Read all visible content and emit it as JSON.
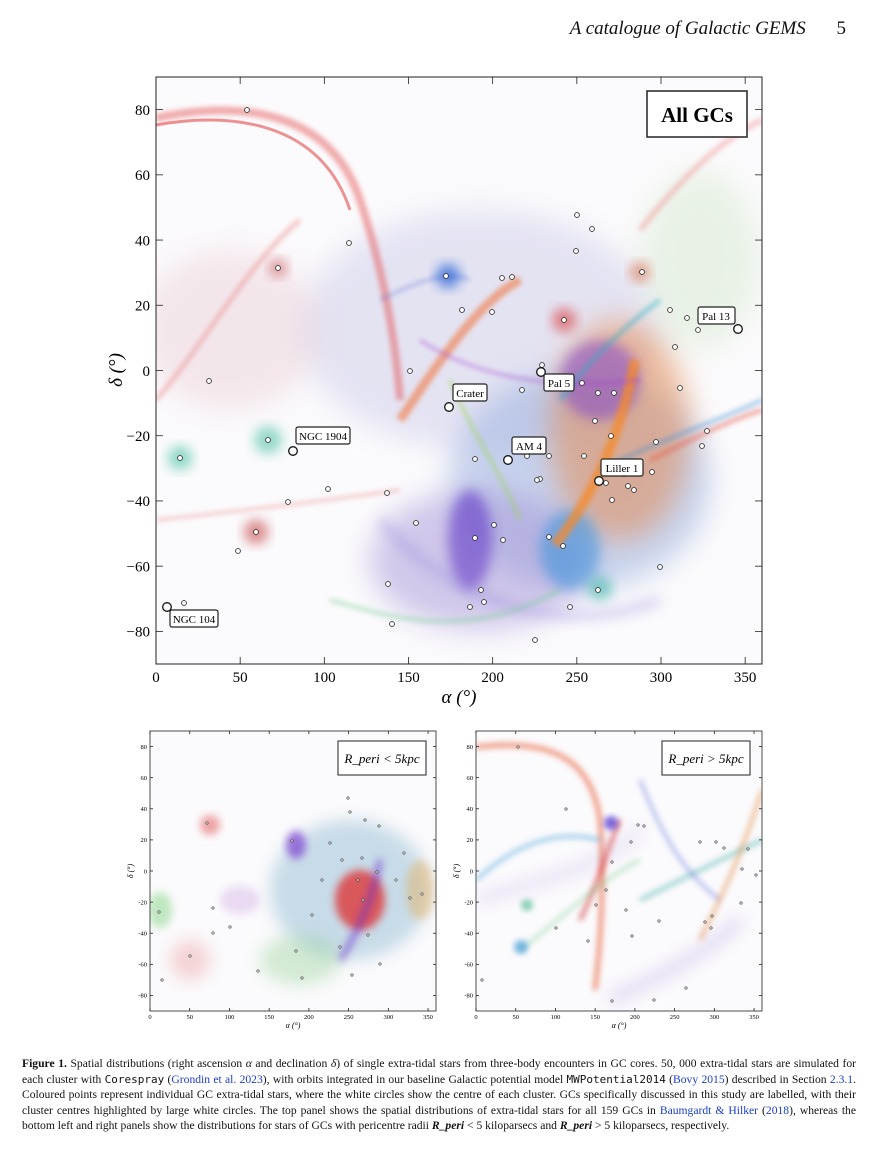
{
  "header": {
    "title": "A catalogue of Galactic GEMS",
    "page_number": "5"
  },
  "top_panel": {
    "label": "All GCs",
    "xlabel": "α (°)",
    "ylabel": "δ (°)",
    "x_ticks": [
      "0",
      "50",
      "100",
      "150",
      "200",
      "250",
      "300",
      "350"
    ],
    "y_ticks": [
      "80",
      "60",
      "40",
      "20",
      "0",
      "−20",
      "−40",
      "−60",
      "−80"
    ],
    "cluster_labels": [
      "Pal 13",
      "Pal 5",
      "Crater",
      "NGC 1904",
      "AM 4",
      "Liller 1",
      "NGC 104"
    ]
  },
  "bottom_left_panel": {
    "label": "R_peri < 5kpc",
    "xlabel": "α (°)",
    "ylabel": "δ (°)",
    "x_ticks": [
      "0",
      "50",
      "100",
      "150",
      "200",
      "250",
      "300",
      "350"
    ],
    "y_ticks": [
      "80",
      "60",
      "40",
      "20",
      "0",
      "-20",
      "-40",
      "-60",
      "-80"
    ]
  },
  "bottom_right_panel": {
    "label": "R_peri > 5kpc",
    "xlabel": "α (°)",
    "ylabel": "δ (°)",
    "x_ticks": [
      "0",
      "50",
      "100",
      "150",
      "200",
      "250",
      "300",
      "350"
    ],
    "y_ticks": [
      "80",
      "60",
      "40",
      "20",
      "0",
      "-20",
      "-40",
      "-60",
      "-80"
    ]
  },
  "caption": {
    "label": "Figure 1.",
    "t1": " Spatial distributions (right ascension ",
    "alpha": "α",
    "t2": " and declination ",
    "delta": "δ",
    "t3": ") of single extra-tidal stars from three-body encounters in GC cores. 50, 000 extra-tidal stars are simulated for each cluster with ",
    "code1": "Corespray",
    "t4": " (",
    "cite1": "Grondin et al. 2023",
    "t5": "), with orbits integrated in our baseline Galactic potential model ",
    "code2": "MWPotential2014",
    "t6": " (",
    "cite2": "Bovy 2015",
    "t7": ") described in Section ",
    "cite3": "2.3.1",
    "t8": ". Coloured points represent individual GC extra-tidal stars, where the white circles show the centre of each cluster. GCs specifically discussed in this study are labelled, with their cluster centres highlighted by large white circles. The top panel shows the spatial distributions of extra-tidal stars for all 159 GCs in ",
    "cite4": "Baumgardt & Hilker",
    "t9": " (",
    "cite5": "2018",
    "t10": "), whereas the bottom left and right panels show the distributions for stars of GCs with pericentre radii ",
    "rperi1": "R_peri",
    "t11": " < 5 kiloparsecs and ",
    "rperi2": "R_peri",
    "t12": " > 5 kiloparsecs, respectively."
  }
}
